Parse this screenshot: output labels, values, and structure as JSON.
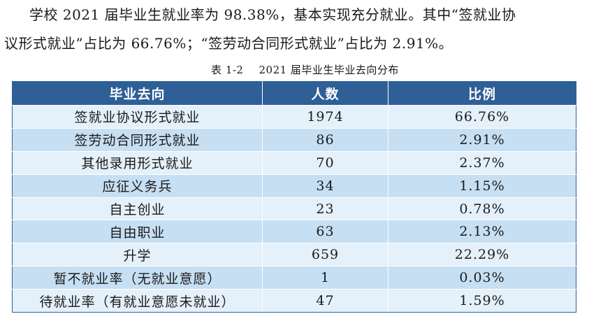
{
  "paragraph": {
    "line1": "学校 2021 届毕业生就业率为 98.38%，基本实现充分就业。其中“签就业协",
    "line2": "议形式就业”占比为 66.76%；“签劳动合同形式就业”占比为 2.91%。"
  },
  "table": {
    "caption_number": "表 1-2",
    "caption_title": "2021 届毕业生毕业去向分布",
    "headers": [
      "毕业去向",
      "人数",
      "比例"
    ],
    "rows": [
      {
        "destination": "签就业协议形式就业",
        "count": "1974",
        "ratio": "66.76%"
      },
      {
        "destination": "签劳动合同形式就业",
        "count": "86",
        "ratio": "2.91%"
      },
      {
        "destination": "其他录用形式就业",
        "count": "70",
        "ratio": "2.37%"
      },
      {
        "destination": "应征义务兵",
        "count": "34",
        "ratio": "1.15%"
      },
      {
        "destination": "自主创业",
        "count": "23",
        "ratio": "0.78%"
      },
      {
        "destination": "自由职业",
        "count": "63",
        "ratio": "2.13%"
      },
      {
        "destination": "升学",
        "count": "659",
        "ratio": "22.29%"
      },
      {
        "destination": "暂不就业率（无就业意愿）",
        "count": "1",
        "ratio": "0.03%"
      },
      {
        "destination": "待就业率（有就业意愿未就业）",
        "count": "47",
        "ratio": "1.59%"
      }
    ]
  },
  "colors": {
    "header_bg": "#2e5f96",
    "row_light": "#e4f0fa",
    "row_dark": "#c6dff3"
  }
}
